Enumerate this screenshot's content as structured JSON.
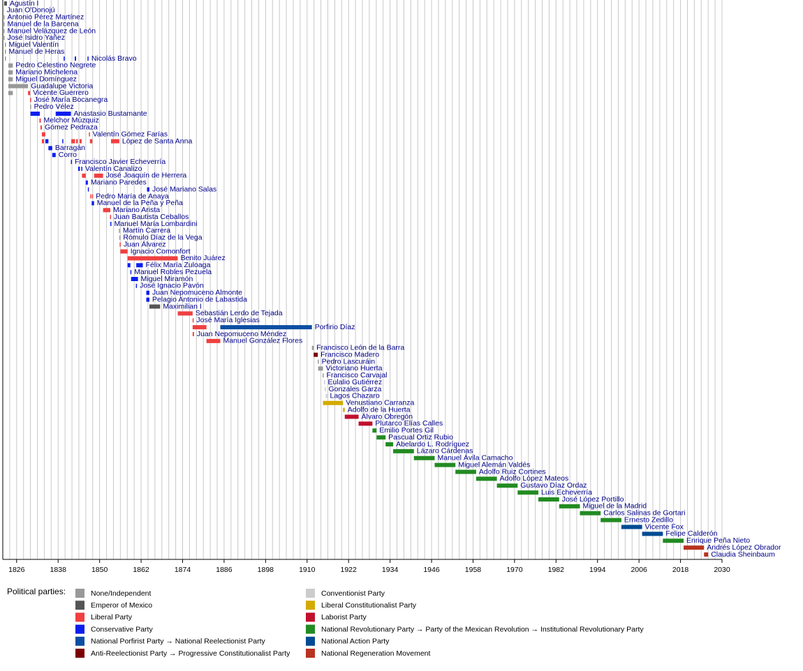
{
  "chart_data": {
    "type": "timeline",
    "xlim": [
      1822,
      2030
    ],
    "xticks": [
      1826,
      1838,
      1850,
      1862,
      1874,
      1886,
      1898,
      1910,
      1922,
      1934,
      1946,
      1958,
      1970,
      1982,
      1994,
      2006,
      2018,
      2030
    ],
    "grid": true,
    "grid_step": 2,
    "legend_title": "Political parties:",
    "parties": [
      {
        "name": "None/Independent",
        "color": "#999999"
      },
      {
        "name": "Emperor of Mexico",
        "color": "#555555"
      },
      {
        "name": "Liberal Party",
        "color": "#f04040"
      },
      {
        "name": "Conservative Party",
        "color": "#0a1ef0"
      },
      {
        "name": "National Porfirist Party → National Reelectionist Party",
        "color": "#0b4ea2"
      },
      {
        "name": "Anti-Reelectionist Party → Progressive Constitutionalist Party",
        "color": "#7a0000"
      },
      {
        "name": "Conventionist Party",
        "color": "#cccccc"
      },
      {
        "name": "Liberal Constitutionalist Party",
        "color": "#d4aa00"
      },
      {
        "name": "Laborist Party",
        "color": "#c0102e"
      },
      {
        "name": "National Revolutionary Party → Party of the Mexican Revolution → Institutional Revolutionary Party",
        "color": "#228b22"
      },
      {
        "name": "National Action Party",
        "color": "#004b93"
      },
      {
        "name": "National Regeneration Movement",
        "color": "#b83320"
      }
    ],
    "rows": [
      {
        "name": "Agustín I",
        "terms": [
          [
            1822.4,
            1823.2,
            "Emperor of Mexico"
          ]
        ]
      },
      {
        "name": "Juan O'Donojú",
        "terms": [
          [
            1822.0,
            1822.2,
            "None/Independent"
          ]
        ]
      },
      {
        "name": "Antonio Pérez Martínez",
        "terms": [
          [
            1822.0,
            1822.5,
            "None/Independent"
          ]
        ]
      },
      {
        "name": "Manuel de la Barcena",
        "terms": [
          [
            1822.0,
            1822.5,
            "None/Independent"
          ]
        ]
      },
      {
        "name": "Manuel Velázquez de León",
        "terms": [
          [
            1822.0,
            1822.5,
            "None/Independent"
          ]
        ]
      },
      {
        "name": "José Isidro Yañez",
        "terms": [
          [
            1822.0,
            1822.5,
            "None/Independent"
          ]
        ]
      },
      {
        "name": "Miguel Valentín",
        "terms": [
          [
            1822.6,
            1822.8,
            "None/Independent"
          ]
        ]
      },
      {
        "name": "Manuel de Heras",
        "terms": [
          [
            1822.6,
            1822.8,
            "None/Independent"
          ]
        ]
      },
      {
        "name": "Nicolás Bravo",
        "terms": [
          [
            1822.6,
            1822.9,
            "None/Independent"
          ],
          [
            1839.6,
            1839.8,
            "Conservative Party"
          ],
          [
            1842.8,
            1843.2,
            "Conservative Party"
          ],
          [
            1846.5,
            1846.7,
            "Conservative Party"
          ]
        ]
      },
      {
        "name": "Pedro Celestino Negrete",
        "terms": [
          [
            1823.6,
            1824.9,
            "None/Independent"
          ]
        ]
      },
      {
        "name": "Mariano Michelena",
        "terms": [
          [
            1823.6,
            1824.9,
            "None/Independent"
          ]
        ]
      },
      {
        "name": "Miguel Domínguez",
        "terms": [
          [
            1823.6,
            1824.9,
            "None/Independent"
          ]
        ]
      },
      {
        "name": "Guadalupe Victoria",
        "terms": [
          [
            1823.6,
            1829.3,
            "None/Independent"
          ]
        ]
      },
      {
        "name": "Vicente Guerrero",
        "terms": [
          [
            1823.6,
            1824.9,
            "None/Independent"
          ],
          [
            1829.3,
            1829.9,
            "Liberal Party"
          ]
        ]
      },
      {
        "name": "José María Bocanegra",
        "terms": [
          [
            1829.9,
            1830.0,
            "Liberal Party"
          ]
        ]
      },
      {
        "name": "Pedro Vélez",
        "terms": [
          [
            1829.9,
            1830.0,
            "None/Independent"
          ]
        ]
      },
      {
        "name": "Anastasio Bustamante",
        "terms": [
          [
            1830.0,
            1832.7,
            "Conservative Party"
          ],
          [
            1837.3,
            1841.7,
            "Conservative Party"
          ]
        ]
      },
      {
        "name": "Melchor Múzquiz",
        "terms": [
          [
            1832.6,
            1833.0,
            "Liberal Party"
          ]
        ]
      },
      {
        "name": "Gómez Pedraza",
        "terms": [
          [
            1832.9,
            1833.3,
            "Liberal Party"
          ]
        ]
      },
      {
        "name": "Valentín Gómez Farías",
        "terms": [
          [
            1833.3,
            1834.3,
            "Liberal Party"
          ],
          [
            1846.9,
            1847.2,
            "Liberal Party"
          ]
        ]
      },
      {
        "name": "López de Santa Anna",
        "terms": [
          [
            1833.3,
            1833.9,
            "Liberal Party"
          ],
          [
            1834.3,
            1835.2,
            "Conservative Party"
          ],
          [
            1839.2,
            1839.5,
            "Conservative Party"
          ],
          [
            1841.8,
            1842.9,
            "Liberal Party"
          ],
          [
            1843.2,
            1843.7,
            "Liberal Party"
          ],
          [
            1844.2,
            1844.8,
            "Liberal Party"
          ],
          [
            1847.2,
            1847.9,
            "Liberal Party"
          ],
          [
            1853.3,
            1855.7,
            "Liberal Party"
          ]
        ]
      },
      {
        "name": "Barragán",
        "terms": [
          [
            1835.2,
            1836.3,
            "Conservative Party"
          ]
        ]
      },
      {
        "name": "Corro",
        "terms": [
          [
            1836.3,
            1837.3,
            "Conservative Party"
          ]
        ]
      },
      {
        "name": "Francisco Javier Echeverría",
        "terms": [
          [
            1841.7,
            1841.8,
            "Conservative Party"
          ]
        ]
      },
      {
        "name": "Valentín Canalizo",
        "terms": [
          [
            1843.8,
            1844.3,
            "Conservative Party"
          ],
          [
            1844.7,
            1844.9,
            "Conservative Party"
          ]
        ]
      },
      {
        "name": "José Joaquín de Herrera",
        "terms": [
          [
            1844.9,
            1846.0,
            "Liberal Party"
          ],
          [
            1848.4,
            1851.0,
            "Liberal Party"
          ]
        ]
      },
      {
        "name": "Mariano Paredes",
        "terms": [
          [
            1846.0,
            1846.6,
            "Conservative Party"
          ]
        ]
      },
      {
        "name": "José Mariano Salas",
        "terms": [
          [
            1846.6,
            1846.9,
            "Conservative Party"
          ],
          [
            1863.7,
            1864.4,
            "Conservative Party"
          ]
        ]
      },
      {
        "name": "Pedro María de Anaya",
        "terms": [
          [
            1847.3,
            1847.5,
            "Liberal Party"
          ],
          [
            1847.8,
            1848.0,
            "Liberal Party"
          ]
        ]
      },
      {
        "name": "Manuel de la Peña y Peña",
        "terms": [
          [
            1847.7,
            1848.4,
            "Conservative Party"
          ]
        ]
      },
      {
        "name": "Mariano Arista",
        "terms": [
          [
            1851.0,
            1853.1,
            "Liberal Party"
          ]
        ]
      },
      {
        "name": "Juan Bautista Ceballos",
        "terms": [
          [
            1853.0,
            1853.1,
            "Liberal Party"
          ]
        ]
      },
      {
        "name": "Manuel María Lombardini",
        "terms": [
          [
            1853.1,
            1853.3,
            "Conservative Party"
          ]
        ]
      },
      {
        "name": "Martín Carrera",
        "terms": [
          [
            1855.6,
            1855.7,
            "None/Independent"
          ]
        ]
      },
      {
        "name": "Rómulo Díaz de la Vega",
        "terms": [
          [
            1855.7,
            1855.8,
            "None/Independent"
          ]
        ]
      },
      {
        "name": "Juan Álvarez",
        "terms": [
          [
            1855.8,
            1856.0,
            "Liberal Party"
          ]
        ]
      },
      {
        "name": "Ignacio Comonfort",
        "terms": [
          [
            1856.0,
            1858.1,
            "Liberal Party"
          ]
        ]
      },
      {
        "name": "Benito Juárez",
        "terms": [
          [
            1858.1,
            1872.6,
            "Liberal Party"
          ]
        ]
      },
      {
        "name": "Félix María Zuloaga",
        "terms": [
          [
            1858.1,
            1858.9,
            "Conservative Party"
          ],
          [
            1860.6,
            1862.5,
            "Conservative Party"
          ]
        ]
      },
      {
        "name": "Manuel Robles Pezuela",
        "terms": [
          [
            1858.9,
            1859.1,
            "Conservative Party"
          ]
        ]
      },
      {
        "name": "Miguel Miramón",
        "terms": [
          [
            1859.1,
            1861.1,
            "Conservative Party"
          ]
        ]
      },
      {
        "name": "José Ignacio Pavón",
        "terms": [
          [
            1860.5,
            1860.6,
            "Conservative Party"
          ]
        ]
      },
      {
        "name": "Juan Nepomuceno Almonte",
        "terms": [
          [
            1863.5,
            1864.4,
            "Conservative Party"
          ]
        ]
      },
      {
        "name": "Pelagio Antonio de Labastida",
        "terms": [
          [
            1863.5,
            1864.4,
            "Conservative Party"
          ]
        ]
      },
      {
        "name": "Maximilian I",
        "terms": [
          [
            1864.4,
            1867.5,
            "Emperor of Mexico"
          ]
        ]
      },
      {
        "name": "Sebastián Lerdo de Tejada",
        "terms": [
          [
            1872.6,
            1876.9,
            "Liberal Party"
          ]
        ]
      },
      {
        "name": "José María Iglesias",
        "terms": [
          [
            1876.9,
            1877.0,
            "Liberal Party"
          ]
        ]
      },
      {
        "name": "Porfirio Díaz",
        "terms": [
          [
            1876.9,
            1880.9,
            "Liberal Party"
          ],
          [
            1884.9,
            1911.4,
            "National Porfirist Party → National Reelectionist Party"
          ]
        ]
      },
      {
        "name": "Juan Nepomuceno Méndez",
        "terms": [
          [
            1876.9,
            1877.3,
            "Liberal Party"
          ]
        ]
      },
      {
        "name": "Manuel González Flores",
        "terms": [
          [
            1880.9,
            1884.9,
            "Liberal Party"
          ]
        ]
      },
      {
        "name": "Francisco León de la Barra",
        "terms": [
          [
            1911.4,
            1911.9,
            "None/Independent"
          ]
        ]
      },
      {
        "name": "Francisco Madero",
        "terms": [
          [
            1911.9,
            1913.1,
            "Anti-Reelectionist Party → Progressive Constitutionalist Party"
          ]
        ]
      },
      {
        "name": "Pedro Lascuráin",
        "terms": [
          [
            1913.1,
            1913.2,
            "None/Independent"
          ]
        ]
      },
      {
        "name": "Victoriano Huerta",
        "terms": [
          [
            1913.2,
            1914.6,
            "None/Independent"
          ]
        ]
      },
      {
        "name": "Francisco Carvajal",
        "terms": [
          [
            1914.5,
            1914.6,
            "None/Independent"
          ]
        ]
      },
      {
        "name": "Eulalio Gutiérrez",
        "terms": [
          [
            1914.9,
            1915.1,
            "Conventionist Party"
          ]
        ]
      },
      {
        "name": "Gonzales Garza",
        "terms": [
          [
            1915.1,
            1915.4,
            "Conventionist Party"
          ]
        ]
      },
      {
        "name": "Lagos Chazaro",
        "terms": [
          [
            1915.4,
            1915.8,
            "Conventionist Party"
          ]
        ]
      },
      {
        "name": "Venustiano Carranza",
        "terms": [
          [
            1914.6,
            1920.4,
            "Liberal Constitutionalist Party"
          ]
        ]
      },
      {
        "name": "Adolfo de la Huerta",
        "terms": [
          [
            1920.4,
            1920.9,
            "Liberal Constitutionalist Party"
          ]
        ]
      },
      {
        "name": "Álvaro Obregón",
        "terms": [
          [
            1920.9,
            1924.9,
            "Laborist Party"
          ]
        ]
      },
      {
        "name": "Plutarco Elías Calles",
        "terms": [
          [
            1924.9,
            1928.9,
            "Laborist Party"
          ]
        ]
      },
      {
        "name": "Emilio Portes Gil",
        "terms": [
          [
            1928.9,
            1930.1,
            "National Revolutionary Party → Party of the Mexican Revolution → Institutional Revolutionary Party"
          ]
        ]
      },
      {
        "name": "Pascual Ortiz Rubio",
        "terms": [
          [
            1930.1,
            1932.7,
            "National Revolutionary Party → Party of the Mexican Revolution → Institutional Revolutionary Party"
          ]
        ]
      },
      {
        "name": "Abelardo L. Rodríguez",
        "terms": [
          [
            1932.7,
            1934.9,
            "National Revolutionary Party → Party of the Mexican Revolution → Institutional Revolutionary Party"
          ]
        ]
      },
      {
        "name": "Lázaro Cárdenas",
        "terms": [
          [
            1934.9,
            1940.9,
            "National Revolutionary Party → Party of the Mexican Revolution → Institutional Revolutionary Party"
          ]
        ]
      },
      {
        "name": "Manuel Ávila Camacho",
        "terms": [
          [
            1940.9,
            1946.9,
            "National Revolutionary Party → Party of the Mexican Revolution → Institutional Revolutionary Party"
          ]
        ]
      },
      {
        "name": "Miguel Alemán Valdés",
        "terms": [
          [
            1946.9,
            1952.9,
            "National Revolutionary Party → Party of the Mexican Revolution → Institutional Revolutionary Party"
          ]
        ]
      },
      {
        "name": "Adolfo Ruiz Cortines",
        "terms": [
          [
            1952.9,
            1958.9,
            "National Revolutionary Party → Party of the Mexican Revolution → Institutional Revolutionary Party"
          ]
        ]
      },
      {
        "name": "Adolfo López Mateos",
        "terms": [
          [
            1958.9,
            1964.9,
            "National Revolutionary Party → Party of the Mexican Revolution → Institutional Revolutionary Party"
          ]
        ]
      },
      {
        "name": "Gustavo Díaz Ordaz",
        "terms": [
          [
            1964.9,
            1970.9,
            "National Revolutionary Party → Party of the Mexican Revolution → Institutional Revolutionary Party"
          ]
        ]
      },
      {
        "name": "Luis Echeverría",
        "terms": [
          [
            1970.9,
            1976.9,
            "National Revolutionary Party → Party of the Mexican Revolution → Institutional Revolutionary Party"
          ]
        ]
      },
      {
        "name": "José López Portillo",
        "terms": [
          [
            1976.9,
            1982.9,
            "National Revolutionary Party → Party of the Mexican Revolution → Institutional Revolutionary Party"
          ]
        ]
      },
      {
        "name": "Miguel de la Madrid",
        "terms": [
          [
            1982.9,
            1988.9,
            "National Revolutionary Party → Party of the Mexican Revolution → Institutional Revolutionary Party"
          ]
        ]
      },
      {
        "name": "Carlos Salinas de Gortari",
        "terms": [
          [
            1988.9,
            1994.9,
            "National Revolutionary Party → Party of the Mexican Revolution → Institutional Revolutionary Party"
          ]
        ]
      },
      {
        "name": "Ernesto Zedillo",
        "terms": [
          [
            1994.9,
            2000.9,
            "National Revolutionary Party → Party of the Mexican Revolution → Institutional Revolutionary Party"
          ]
        ]
      },
      {
        "name": "Vicente Fox",
        "terms": [
          [
            2000.9,
            2006.9,
            "National Action Party"
          ]
        ]
      },
      {
        "name": "Felipe Calderón",
        "terms": [
          [
            2006.9,
            2012.9,
            "National Action Party"
          ]
        ]
      },
      {
        "name": "Enrique Peña Nieto",
        "terms": [
          [
            2012.9,
            2018.9,
            "National Revolutionary Party → Party of the Mexican Revolution → Institutional Revolutionary Party"
          ]
        ]
      },
      {
        "name": "Andrés López Obrador",
        "terms": [
          [
            2018.9,
            2024.8,
            "National Regeneration Movement"
          ]
        ]
      },
      {
        "name": "Claudia Sheinbaum",
        "terms": [
          [
            2024.8,
            2026.0,
            "National Regeneration Movement"
          ]
        ]
      }
    ]
  }
}
